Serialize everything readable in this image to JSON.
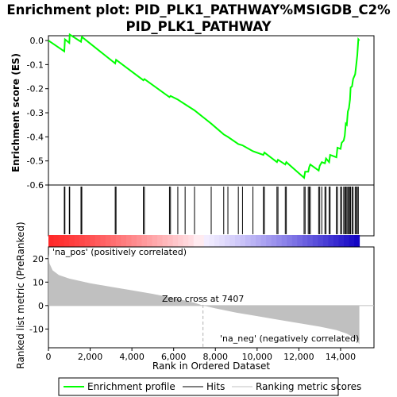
{
  "title_line1": "Enrichment plot: PID_PLK1_PATHWAY%MSIGDB_C2%",
  "title_line2": "PID_PLK1_PATHWAY",
  "chart_data": {
    "type": "line",
    "es_panel": {
      "ylabel": "Enrichment score (ES)",
      "ylim": [
        -0.6,
        0.02
      ],
      "yticks": [
        "0.0",
        "-0.1",
        "-0.2",
        "-0.3",
        "-0.4",
        "-0.5",
        "-0.6"
      ],
      "ytick_values": [
        0.0,
        -0.1,
        -0.2,
        -0.3,
        -0.4,
        -0.5,
        -0.6
      ],
      "grid": false,
      "series_color": "#00ff00",
      "running_es": [
        [
          0,
          0.0
        ],
        [
          760,
          -0.045
        ],
        [
          790,
          0.005
        ],
        [
          1000,
          -0.01
        ],
        [
          1020,
          0.025
        ],
        [
          1560,
          -0.005
        ],
        [
          1600,
          0.015
        ],
        [
          3200,
          -0.095
        ],
        [
          3240,
          -0.08
        ],
        [
          4550,
          -0.165
        ],
        [
          4600,
          -0.16
        ],
        [
          5800,
          -0.235
        ],
        [
          5850,
          -0.23
        ],
        [
          6200,
          -0.245
        ],
        [
          6550,
          -0.265
        ],
        [
          7000,
          -0.29
        ],
        [
          7800,
          -0.345
        ],
        [
          8400,
          -0.39
        ],
        [
          8600,
          -0.4
        ],
        [
          9100,
          -0.43
        ],
        [
          9300,
          -0.435
        ],
        [
          9800,
          -0.46
        ],
        [
          10300,
          -0.475
        ],
        [
          10350,
          -0.465
        ],
        [
          10950,
          -0.505
        ],
        [
          11000,
          -0.495
        ],
        [
          11350,
          -0.515
        ],
        [
          11400,
          -0.505
        ],
        [
          12250,
          -0.57
        ],
        [
          12300,
          -0.545
        ],
        [
          12450,
          -0.545
        ],
        [
          12500,
          -0.525
        ],
        [
          12550,
          -0.515
        ],
        [
          12950,
          -0.54
        ],
        [
          13000,
          -0.52
        ],
        [
          13100,
          -0.505
        ],
        [
          13250,
          -0.51
        ],
        [
          13300,
          -0.49
        ],
        [
          13450,
          -0.505
        ],
        [
          13500,
          -0.475
        ],
        [
          13800,
          -0.485
        ],
        [
          13850,
          -0.445
        ],
        [
          14000,
          -0.45
        ],
        [
          14050,
          -0.425
        ],
        [
          14150,
          -0.415
        ],
        [
          14200,
          -0.395
        ],
        [
          14250,
          -0.345
        ],
        [
          14300,
          -0.35
        ],
        [
          14350,
          -0.295
        ],
        [
          14400,
          -0.28
        ],
        [
          14450,
          -0.245
        ],
        [
          14480,
          -0.195
        ],
        [
          14550,
          -0.19
        ],
        [
          14600,
          -0.16
        ],
        [
          14700,
          -0.14
        ],
        [
          14750,
          -0.1
        ],
        [
          14800,
          -0.06
        ],
        [
          14850,
          0.005
        ],
        [
          14900,
          0.0
        ]
      ]
    },
    "hits_panel": {
      "hit_positions": [
        760,
        790,
        1000,
        1020,
        1560,
        1600,
        3200,
        3240,
        4550,
        4600,
        5800,
        5850,
        6200,
        6550,
        7000,
        7800,
        8400,
        8600,
        9100,
        9300,
        9800,
        10300,
        10350,
        10950,
        11000,
        11350,
        11400,
        12250,
        12300,
        12450,
        12500,
        12550,
        12950,
        13000,
        13100,
        13250,
        13300,
        13450,
        13500,
        13800,
        13850,
        14000,
        14050,
        14150,
        14200,
        14250,
        14300,
        14350,
        14400,
        14450,
        14480,
        14550,
        14600,
        14700,
        14750,
        14800,
        14850
      ]
    },
    "metric_panel": {
      "ylabel": "Ranked list metric (PreRanked)",
      "ylim": [
        -18,
        25
      ],
      "yticks": [
        "20",
        "10",
        "0",
        "-10"
      ],
      "ytick_values": [
        20,
        10,
        0,
        -10
      ],
      "fill_color": "#c0c0c0",
      "zero_cross_label": "Zero cross at 7407",
      "zero_cross": 7407,
      "pos_label": "'na_pos' (positively correlated)",
      "neg_label": "'na_neg' (negatively correlated)",
      "pos_label_color": "#ff0000",
      "neg_label_color": "#0000ff",
      "metric_curve": [
        [
          0,
          22
        ],
        [
          50,
          18
        ],
        [
          200,
          15
        ],
        [
          500,
          13
        ],
        [
          1000,
          11.5
        ],
        [
          2000,
          9.5
        ],
        [
          3000,
          8
        ],
        [
          4000,
          6.5
        ],
        [
          5000,
          5
        ],
        [
          6000,
          3.2
        ],
        [
          7000,
          1.2
        ],
        [
          7407,
          0
        ],
        [
          8000,
          -1.2
        ],
        [
          9000,
          -3
        ],
        [
          10000,
          -4.5
        ],
        [
          11000,
          -6
        ],
        [
          12000,
          -7.5
        ],
        [
          13000,
          -9
        ],
        [
          13800,
          -10.5
        ],
        [
          14300,
          -12
        ],
        [
          14600,
          -13.5
        ],
        [
          14800,
          -15
        ],
        [
          14900,
          -16.5
        ]
      ]
    },
    "xaxis": {
      "xlabel": "Rank in Ordered Dataset",
      "xlim": [
        0,
        15600
      ],
      "xticks": [
        "0",
        "2,000",
        "4,000",
        "6,000",
        "8,000",
        "10,000",
        "12,000",
        "14,000"
      ],
      "xtick_values": [
        0,
        2000,
        4000,
        6000,
        8000,
        10000,
        12000,
        14000
      ],
      "n_genes": 14900
    },
    "legend": {
      "placement": "bottom",
      "entries": [
        "Enrichment profile",
        "Hits",
        "Ranking metric scores"
      ]
    }
  }
}
